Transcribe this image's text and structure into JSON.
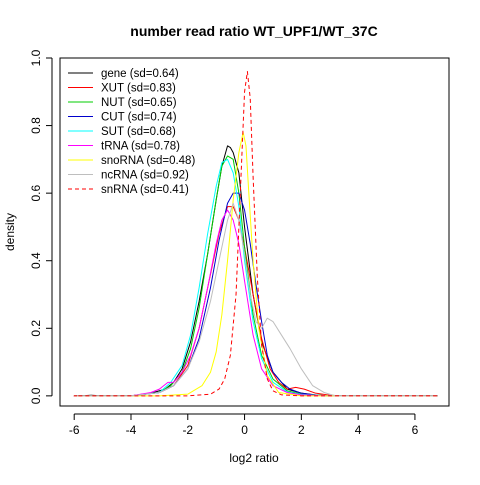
{
  "chart_data": {
    "type": "line",
    "title": "number read ratio WT_UPF1/WT_37C",
    "xlabel": "log2 ratio",
    "ylabel": "density",
    "xlim": [
      -6.5,
      7.2
    ],
    "ylim": [
      -0.03,
      1.0
    ],
    "xticks": [
      -6,
      -4,
      -2,
      0,
      2,
      4,
      6
    ],
    "yticks": [
      0.0,
      0.2,
      0.4,
      0.6,
      0.8,
      1.0
    ],
    "xtick_labels": [
      "-6",
      "-4",
      "-2",
      "0",
      "2",
      "4",
      "6"
    ],
    "ytick_labels": [
      "0.0",
      "0.2",
      "0.4",
      "0.6",
      "0.8",
      "1.0"
    ],
    "legend_position": "top-left",
    "grid": false,
    "series": [
      {
        "name": "gene (sd=0.64)",
        "color": "#000000",
        "dash": "solid",
        "x": [
          -5.8,
          -5.4,
          -5.0,
          -4.0,
          -3.2,
          -2.8,
          -2.5,
          -2.2,
          -1.9,
          -1.6,
          -1.3,
          -1.0,
          -0.8,
          -0.6,
          -0.5,
          -0.4,
          -0.2,
          0.0,
          0.3,
          0.6,
          1.0,
          1.5,
          2.0,
          2.5,
          3.0
        ],
        "y": [
          0,
          0.002,
          0,
          0,
          0.01,
          0.02,
          0.04,
          0.08,
          0.16,
          0.28,
          0.42,
          0.58,
          0.68,
          0.74,
          0.735,
          0.72,
          0.66,
          0.5,
          0.3,
          0.16,
          0.07,
          0.02,
          0.008,
          0.003,
          0
        ]
      },
      {
        "name": "XUT (sd=0.83)",
        "color": "#ff0000",
        "dash": "solid",
        "x": [
          -6.0,
          -4.0,
          -3.0,
          -2.5,
          -2.0,
          -1.6,
          -1.2,
          -0.9,
          -0.6,
          -0.4,
          -0.2,
          0.0,
          0.3,
          0.6,
          0.9,
          1.2,
          1.5,
          1.8,
          2.1,
          2.5,
          3.0,
          3.5
        ],
        "y": [
          0,
          0,
          0.01,
          0.03,
          0.09,
          0.2,
          0.36,
          0.48,
          0.56,
          0.56,
          0.52,
          0.44,
          0.3,
          0.17,
          0.08,
          0.04,
          0.02,
          0.025,
          0.02,
          0.008,
          0.002,
          0
        ]
      },
      {
        "name": "NUT (sd=0.65)",
        "color": "#00cc00",
        "dash": "solid",
        "x": [
          -6.0,
          -4.0,
          -3.0,
          -2.6,
          -2.2,
          -1.9,
          -1.6,
          -1.3,
          -1.0,
          -0.8,
          -0.6,
          -0.4,
          -0.2,
          0.0,
          0.3,
          0.6,
          1.0,
          1.5,
          2.0,
          3.0
        ],
        "y": [
          0,
          0,
          0.01,
          0.03,
          0.07,
          0.14,
          0.26,
          0.42,
          0.58,
          0.68,
          0.71,
          0.7,
          0.6,
          0.44,
          0.24,
          0.12,
          0.05,
          0.015,
          0.005,
          0
        ]
      },
      {
        "name": "CUT (sd=0.74)",
        "color": "#0000cc",
        "dash": "solid",
        "x": [
          -6.0,
          -4.0,
          -3.0,
          -2.5,
          -2.0,
          -1.6,
          -1.2,
          -0.9,
          -0.6,
          -0.4,
          -0.2,
          0.0,
          0.2,
          0.4,
          0.6,
          0.8,
          1.0,
          1.3,
          1.6,
          2.0,
          2.5,
          3.0
        ],
        "y": [
          0,
          0,
          0.01,
          0.03,
          0.08,
          0.17,
          0.32,
          0.46,
          0.57,
          0.6,
          0.6,
          0.55,
          0.45,
          0.33,
          0.22,
          0.12,
          0.07,
          0.04,
          0.02,
          0.008,
          0.002,
          0
        ]
      },
      {
        "name": "SUT (sd=0.68)",
        "color": "#00ffff",
        "dash": "solid",
        "x": [
          -6.0,
          -4.0,
          -3.0,
          -2.6,
          -2.2,
          -1.9,
          -1.6,
          -1.3,
          -1.0,
          -0.8,
          -0.6,
          -0.4,
          -0.2,
          0.0,
          0.3,
          0.6,
          1.0,
          1.5,
          2.0,
          3.0
        ],
        "y": [
          0,
          0,
          0.01,
          0.04,
          0.09,
          0.18,
          0.32,
          0.48,
          0.62,
          0.69,
          0.7,
          0.66,
          0.56,
          0.4,
          0.22,
          0.11,
          0.04,
          0.012,
          0.004,
          0
        ]
      },
      {
        "name": "tRNA (sd=0.78)",
        "color": "#ff00ff",
        "dash": "solid",
        "x": [
          -6.0,
          -4.0,
          -3.3,
          -3.0,
          -2.7,
          -2.5,
          -2.2,
          -1.9,
          -1.6,
          -1.3,
          -1.0,
          -0.8,
          -0.6,
          -0.4,
          -0.2,
          0.0,
          0.3,
          0.6,
          1.0,
          1.5,
          2.0,
          3.0
        ],
        "y": [
          0,
          0,
          0.01,
          0.02,
          0.04,
          0.04,
          0.07,
          0.12,
          0.2,
          0.32,
          0.45,
          0.52,
          0.55,
          0.52,
          0.45,
          0.34,
          0.18,
          0.08,
          0.03,
          0.01,
          0.003,
          0
        ]
      },
      {
        "name": "snoRNA (sd=0.48)",
        "color": "#ffff00",
        "dash": "solid",
        "x": [
          -6.0,
          -3.0,
          -2.0,
          -1.5,
          -1.2,
          -1.0,
          -0.8,
          -0.6,
          -0.4,
          -0.2,
          -0.05,
          0.05,
          0.15,
          0.3,
          0.5,
          0.8,
          1.2,
          2.0,
          3.0
        ],
        "y": [
          0,
          0,
          0.005,
          0.03,
          0.07,
          0.13,
          0.24,
          0.4,
          0.58,
          0.72,
          0.78,
          0.74,
          0.6,
          0.4,
          0.2,
          0.06,
          0.01,
          0,
          0
        ]
      },
      {
        "name": "ncRNA (sd=0.92)",
        "color": "#bebebe",
        "dash": "solid",
        "x": [
          -6.0,
          -4.0,
          -3.0,
          -2.5,
          -2.0,
          -1.6,
          -1.2,
          -0.9,
          -0.6,
          -0.4,
          -0.2,
          0.0,
          0.2,
          0.4,
          0.6,
          0.8,
          1.0,
          1.3,
          1.6,
          2.0,
          2.4,
          2.8,
          3.2
        ],
        "y": [
          0,
          0,
          0.01,
          0.03,
          0.08,
          0.16,
          0.28,
          0.4,
          0.52,
          0.57,
          0.52,
          0.42,
          0.3,
          0.22,
          0.2,
          0.23,
          0.22,
          0.18,
          0.14,
          0.08,
          0.03,
          0.01,
          0
        ]
      },
      {
        "name": "snRNA (sd=0.41)",
        "color": "#ff0000",
        "dash": "dashed",
        "x": [
          -6.0,
          -2.0,
          -1.2,
          -0.9,
          -0.7,
          -0.5,
          -0.3,
          -0.15,
          0.0,
          0.1,
          0.2,
          0.3,
          0.45,
          0.6,
          0.8,
          1.0,
          1.3,
          2.0,
          3.0
        ],
        "y": [
          0,
          0,
          0.005,
          0.02,
          0.05,
          0.12,
          0.3,
          0.6,
          0.9,
          0.96,
          0.88,
          0.65,
          0.35,
          0.15,
          0.05,
          0.015,
          0.003,
          0,
          0
        ]
      }
    ]
  }
}
